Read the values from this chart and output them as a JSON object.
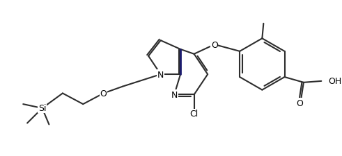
{
  "background_color": "#ffffff",
  "line_color": "#2d2d2d",
  "line_width": 1.5,
  "bond_color": "#1a1a6e",
  "atoms": {
    "Si": "Si",
    "O1": "O",
    "N1": "N",
    "O2": "O",
    "Cl": "Cl",
    "N2": "N",
    "O3": "O",
    "O4": "O",
    "OH": "OH"
  }
}
